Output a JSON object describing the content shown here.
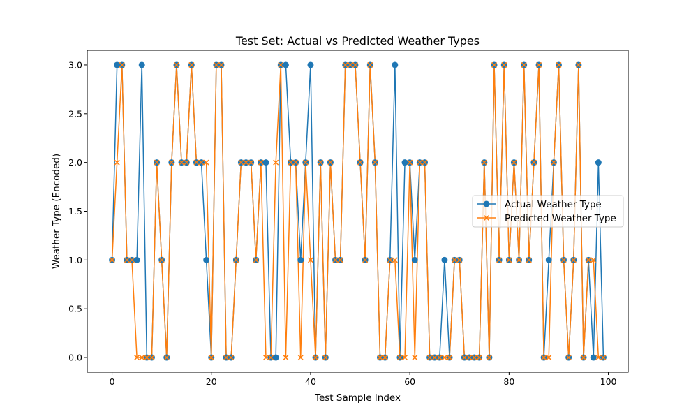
{
  "chart_data": {
    "type": "line",
    "title": "Test Set: Actual vs Predicted Weather Types",
    "xlabel": "Test Sample Index",
    "ylabel": "Weather Type (Encoded)",
    "xlim": [
      -5,
      104
    ],
    "ylim": [
      -0.15,
      3.15
    ],
    "x_ticks": [
      0,
      20,
      40,
      60,
      80,
      100
    ],
    "x_tick_labels": [
      "0",
      "20",
      "40",
      "60",
      "80",
      "100"
    ],
    "y_ticks": [
      0,
      0.5,
      1,
      1.5,
      2,
      2.5,
      3
    ],
    "y_tick_labels": [
      "0.0",
      "0.5",
      "1.0",
      "1.5",
      "2.0",
      "2.5",
      "3.0"
    ],
    "grid": false,
    "legend_position": "center-right",
    "series": [
      {
        "name": "Actual Weather Type",
        "color": "#1f77b4",
        "marker": "circle",
        "values": [
          1,
          3,
          3,
          1,
          1,
          1,
          3,
          0,
          0,
          2,
          1,
          0,
          2,
          3,
          2,
          2,
          3,
          2,
          2,
          1,
          0,
          3,
          3,
          0,
          0,
          1,
          2,
          2,
          2,
          1,
          2,
          2,
          0,
          0,
          3,
          3,
          2,
          2,
          1,
          2,
          3,
          0,
          2,
          0,
          2,
          1,
          1,
          3,
          3,
          3,
          2,
          1,
          3,
          2,
          0,
          0,
          1,
          3,
          0,
          2,
          2,
          1,
          2,
          2,
          0,
          0,
          0,
          1,
          0,
          1,
          1,
          0,
          0,
          0,
          0,
          2,
          0,
          3,
          1,
          3,
          1,
          2,
          1,
          3,
          1,
          2,
          3,
          0,
          1,
          2,
          3,
          1,
          0,
          1,
          3,
          0,
          1,
          0,
          2,
          0
        ]
      },
      {
        "name": "Predicted Weather Type",
        "color": "#ff7f0e",
        "marker": "x",
        "values": [
          1,
          2,
          3,
          1,
          1,
          0,
          0,
          0,
          0,
          2,
          1,
          0,
          2,
          3,
          2,
          2,
          3,
          2,
          2,
          2,
          0,
          3,
          3,
          0,
          0,
          1,
          2,
          2,
          2,
          1,
          2,
          0,
          0,
          2,
          3,
          0,
          2,
          2,
          0,
          2,
          1,
          0,
          2,
          0,
          2,
          1,
          1,
          3,
          3,
          3,
          2,
          1,
          3,
          2,
          0,
          0,
          1,
          1,
          0,
          0,
          2,
          0,
          2,
          2,
          0,
          0,
          0,
          0,
          0,
          1,
          1,
          0,
          0,
          0,
          0,
          2,
          0,
          3,
          1,
          3,
          1,
          2,
          1,
          3,
          1,
          2,
          3,
          0,
          0,
          2,
          3,
          1,
          0,
          1,
          3,
          0,
          1,
          1,
          0,
          0
        ]
      }
    ]
  }
}
